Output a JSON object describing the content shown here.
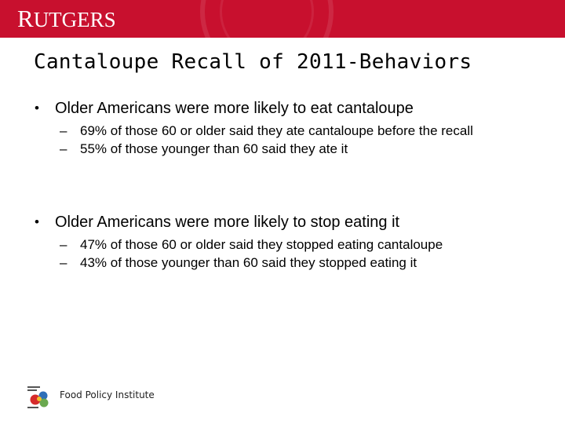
{
  "header": {
    "brand": "RUTGERS",
    "brand_first": "R",
    "brand_rest": "UTGERS"
  },
  "slide": {
    "title": "Cantaloupe Recall of 2011-Behaviors",
    "bullets": [
      {
        "text": "Older Americans were more likely to eat cantaloupe",
        "sub": [
          "69% of those 60 or older said they ate cantaloupe before the recall",
          "55% of those younger than 60 said they ate it"
        ]
      },
      {
        "text": "Older Americans were more likely to stop eating it",
        "sub": [
          "47% of those 60 or older said they stopped eating cantaloupe",
          "43% of those younger than 60 said they stopped eating it"
        ]
      }
    ]
  },
  "footer": {
    "institute": "Food Policy Institute"
  },
  "colors": {
    "banner": "#c8102e",
    "text": "#000000"
  }
}
